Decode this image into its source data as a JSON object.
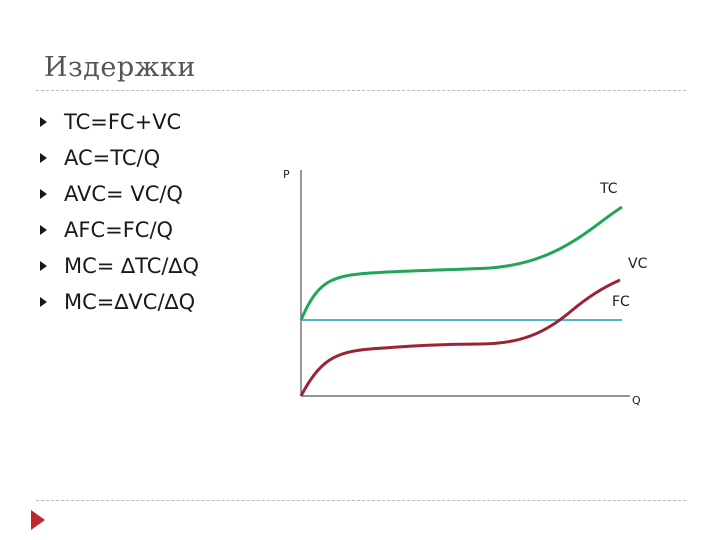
{
  "slide": {
    "title": "Издержки"
  },
  "bullets": [
    "TC=FC+VC",
    "AC=TC/Q",
    "AVC= VC/Q",
    "AFC=FC/Q",
    "MC= ∆TC/∆Q",
    "MC=∆VC/∆Q"
  ],
  "diagram": {
    "y_axis_label": "P",
    "x_axis_label": "Q",
    "curves": [
      {
        "label": "TC",
        "color": "#22a45a"
      },
      {
        "label": "VC",
        "color": "#9b2335"
      },
      {
        "label": "FC",
        "color": "#3aaac6"
      }
    ]
  },
  "colors": {
    "title": "#555555",
    "rule": "#b9b9b9",
    "corner_mark": "#c0272d"
  }
}
